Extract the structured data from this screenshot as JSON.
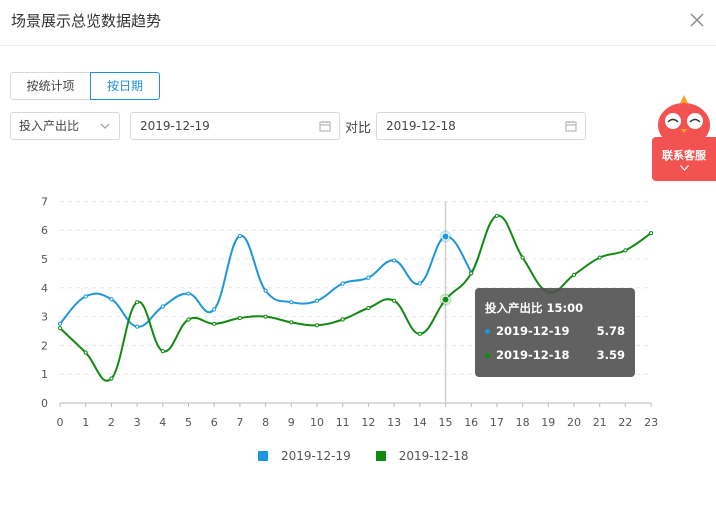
{
  "dialog": {
    "title": "场景展示总览数据趋势"
  },
  "tabs": [
    {
      "label": "按统计项",
      "active": false
    },
    {
      "label": "按日期",
      "active": true
    }
  ],
  "filters": {
    "metric_select": "投入产出比",
    "date1": "2019-12-19",
    "compare_label": "对比",
    "date2": "2019-12-18"
  },
  "customer_service": {
    "label": "联系客服"
  },
  "colors": {
    "series1": "#1e96d9",
    "series2": "#118a11",
    "accent": "#1e90d8",
    "service": "#f35350"
  },
  "chart_data": {
    "type": "line",
    "x": [
      "0",
      "1",
      "2",
      "3",
      "4",
      "5",
      "6",
      "7",
      "8",
      "9",
      "10",
      "11",
      "12",
      "13",
      "14",
      "15",
      "16",
      "17",
      "18",
      "19",
      "20",
      "21",
      "22",
      "23"
    ],
    "y_ticks": [
      "0",
      "1",
      "2",
      "3",
      "4",
      "5",
      "6",
      "7"
    ],
    "ylim": [
      0,
      7
    ],
    "series": [
      {
        "name": "2019-12-19",
        "values": [
          2.75,
          3.7,
          3.6,
          2.65,
          3.35,
          3.8,
          3.25,
          5.8,
          3.9,
          3.5,
          3.55,
          4.15,
          4.35,
          4.95,
          4.15,
          5.78,
          4.55,
          null,
          null,
          null,
          null,
          null,
          null,
          null
        ]
      },
      {
        "name": "2019-12-18",
        "values": [
          2.6,
          1.75,
          0.85,
          3.5,
          1.8,
          2.9,
          2.75,
          2.95,
          3.0,
          2.8,
          2.7,
          2.9,
          3.3,
          3.55,
          2.4,
          3.59,
          4.5,
          6.5,
          5.05,
          3.85,
          4.45,
          5.05,
          5.3,
          5.9
        ]
      }
    ],
    "legend": [
      "2019-12-19",
      "2019-12-18"
    ],
    "legend_position": "bottom"
  },
  "tooltip": {
    "title": "投入产出比 15:00",
    "rows": [
      {
        "date": "2019-12-19",
        "value": "5.78"
      },
      {
        "date": "2019-12-18",
        "value": "3.59"
      }
    ]
  }
}
